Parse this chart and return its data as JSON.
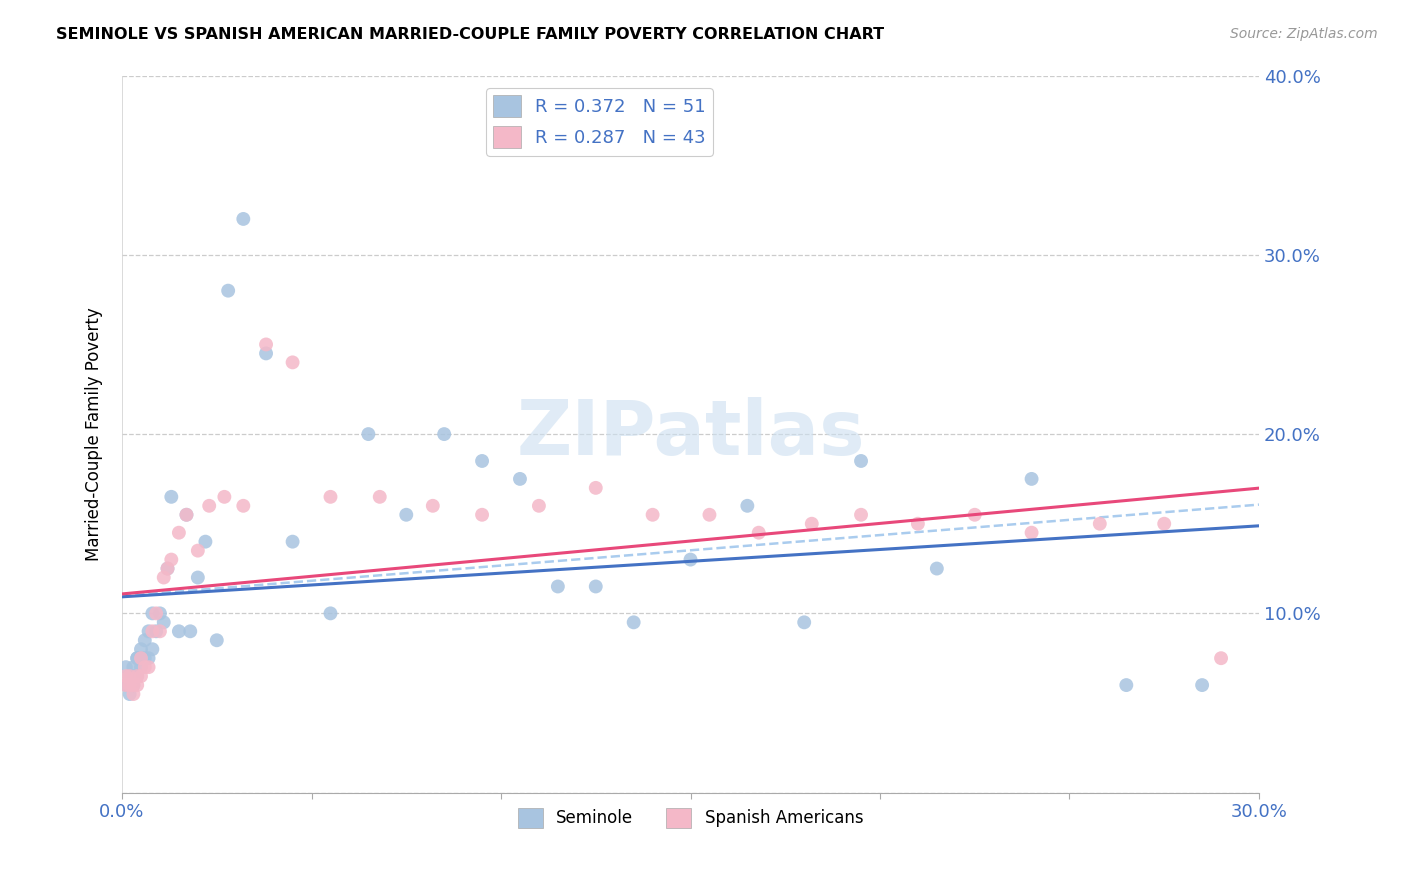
{
  "title": "SEMINOLE VS SPANISH AMERICAN MARRIED-COUPLE FAMILY POVERTY CORRELATION CHART",
  "source": "Source: ZipAtlas.com",
  "ylabel": "Married-Couple Family Poverty",
  "xlim": [
    0,
    0.3
  ],
  "ylim": [
    0,
    0.4
  ],
  "seminole_color": "#a8c4e0",
  "spanish_color": "#f4b8c8",
  "seminole_line_color": "#4472c4",
  "spanish_line_color": "#e8487a",
  "dashed_line_color": "#aaccee",
  "r_seminole": 0.372,
  "n_seminole": 51,
  "r_spanish": 0.287,
  "n_spanish": 43,
  "watermark": "ZIPatlas",
  "legend_label_seminole": "Seminole",
  "legend_label_spanish": "Spanish Americans",
  "seminole_x": [
    0.001,
    0.001,
    0.002,
    0.002,
    0.003,
    0.003,
    0.003,
    0.004,
    0.004,
    0.004,
    0.005,
    0.005,
    0.005,
    0.006,
    0.006,
    0.007,
    0.007,
    0.008,
    0.008,
    0.009,
    0.01,
    0.011,
    0.012,
    0.013,
    0.015,
    0.017,
    0.018,
    0.02,
    0.022,
    0.025,
    0.028,
    0.032,
    0.038,
    0.045,
    0.055,
    0.065,
    0.075,
    0.085,
    0.095,
    0.105,
    0.115,
    0.125,
    0.135,
    0.15,
    0.165,
    0.18,
    0.195,
    0.215,
    0.24,
    0.265,
    0.285
  ],
  "seminole_y": [
    0.06,
    0.07,
    0.055,
    0.065,
    0.06,
    0.065,
    0.07,
    0.065,
    0.075,
    0.075,
    0.07,
    0.075,
    0.08,
    0.075,
    0.085,
    0.075,
    0.09,
    0.08,
    0.1,
    0.09,
    0.1,
    0.095,
    0.125,
    0.165,
    0.09,
    0.155,
    0.09,
    0.12,
    0.14,
    0.085,
    0.28,
    0.32,
    0.245,
    0.14,
    0.1,
    0.2,
    0.155,
    0.2,
    0.185,
    0.175,
    0.115,
    0.115,
    0.095,
    0.13,
    0.16,
    0.095,
    0.185,
    0.125,
    0.175,
    0.06,
    0.06
  ],
  "spanish_x": [
    0.001,
    0.001,
    0.002,
    0.002,
    0.003,
    0.003,
    0.004,
    0.004,
    0.005,
    0.005,
    0.006,
    0.007,
    0.008,
    0.009,
    0.01,
    0.011,
    0.012,
    0.013,
    0.015,
    0.017,
    0.02,
    0.023,
    0.027,
    0.032,
    0.038,
    0.045,
    0.055,
    0.068,
    0.082,
    0.095,
    0.11,
    0.125,
    0.14,
    0.155,
    0.168,
    0.182,
    0.195,
    0.21,
    0.225,
    0.24,
    0.258,
    0.275,
    0.29
  ],
  "spanish_y": [
    0.06,
    0.065,
    0.06,
    0.065,
    0.055,
    0.06,
    0.06,
    0.065,
    0.065,
    0.075,
    0.07,
    0.07,
    0.09,
    0.1,
    0.09,
    0.12,
    0.125,
    0.13,
    0.145,
    0.155,
    0.135,
    0.16,
    0.165,
    0.16,
    0.25,
    0.24,
    0.165,
    0.165,
    0.16,
    0.155,
    0.16,
    0.17,
    0.155,
    0.155,
    0.145,
    0.15,
    0.155,
    0.15,
    0.155,
    0.145,
    0.15,
    0.15,
    0.075
  ]
}
